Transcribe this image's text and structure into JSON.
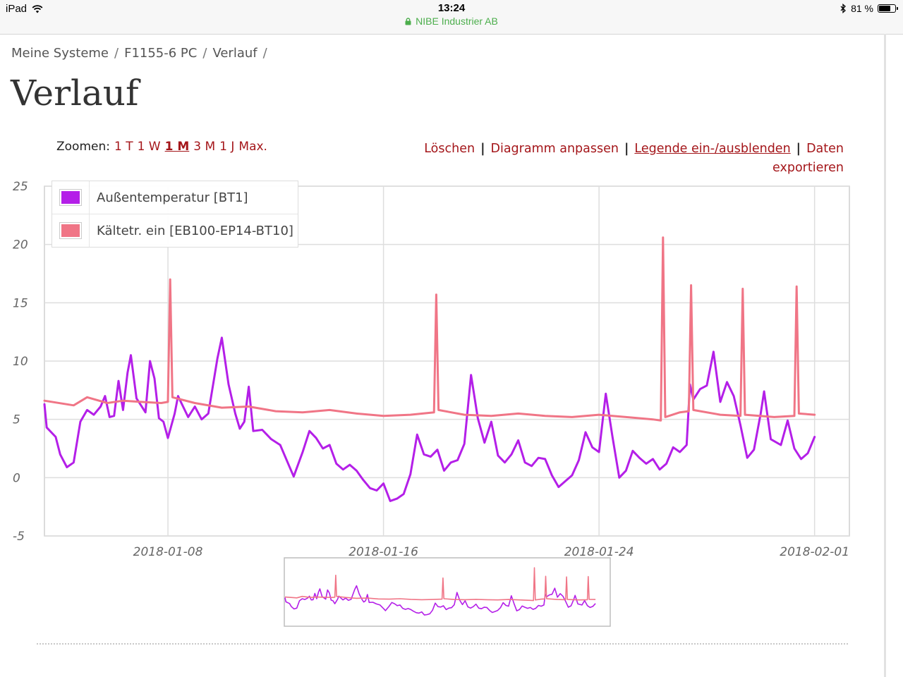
{
  "status_bar": {
    "device": "iPad",
    "time": "13:24",
    "site": "NIBE Industrier AB",
    "battery_text": "81 %",
    "battery_level": 0.81
  },
  "breadcrumb": [
    "Meine Systeme",
    "F1155-6 PC",
    "Verlauf"
  ],
  "breadcrumb_separator": "/",
  "page_title": "Verlauf",
  "zoom": {
    "label": "Zoomen:",
    "options": [
      "1 T",
      "1 W",
      "1 M",
      "3 M",
      "1 J",
      "Max."
    ],
    "active": "1 M"
  },
  "actions": {
    "delete": "Löschen",
    "customize": "Diagramm anpassen",
    "legend_toggle": "Legende ein-/ausblenden",
    "export": "Daten exportieren"
  },
  "colors": {
    "accent": "#a4161a",
    "series_outdoor": "#b41fe8",
    "series_brine": "#f07586"
  },
  "chart_data": {
    "type": "line",
    "title": "",
    "xlabel": "",
    "ylabel": "",
    "ylim": [
      -5,
      25
    ],
    "yticks": [
      -5,
      0,
      5,
      10,
      15,
      20,
      25
    ],
    "xlim": [
      "2018-01-03T10:00",
      "2018-02-02T07:00"
    ],
    "xticks": [
      "2018-01-08",
      "2018-01-16",
      "2018-01-24",
      "2018-02-01"
    ],
    "grid": true,
    "legend_position": "top-left",
    "series": [
      {
        "name": "Außentemperatur [BT1]",
        "color": "#b41fe8",
        "points": [
          [
            "2018-01-03T10:00",
            6.3
          ],
          [
            "2018-01-03T12:00",
            4.3
          ],
          [
            "2018-01-03T20:00",
            3.5
          ],
          [
            "2018-01-04T00:00",
            2.0
          ],
          [
            "2018-01-04T06:00",
            0.9
          ],
          [
            "2018-01-04T12:00",
            1.3
          ],
          [
            "2018-01-04T18:00",
            4.8
          ],
          [
            "2018-01-05T00:00",
            5.8
          ],
          [
            "2018-01-05T06:00",
            5.4
          ],
          [
            "2018-01-05T12:00",
            6.1
          ],
          [
            "2018-01-05T16:00",
            7.0
          ],
          [
            "2018-01-05T20:00",
            5.2
          ],
          [
            "2018-01-06T00:00",
            5.3
          ],
          [
            "2018-01-06T04:00",
            8.3
          ],
          [
            "2018-01-06T08:00",
            5.8
          ],
          [
            "2018-01-06T12:00",
            9.0
          ],
          [
            "2018-01-06T15:00",
            10.5
          ],
          [
            "2018-01-06T20:00",
            6.8
          ],
          [
            "2018-01-07T00:00",
            6.2
          ],
          [
            "2018-01-07T04:00",
            5.6
          ],
          [
            "2018-01-07T08:00",
            10.0
          ],
          [
            "2018-01-07T12:00",
            8.5
          ],
          [
            "2018-01-07T16:00",
            5.1
          ],
          [
            "2018-01-07T20:00",
            4.8
          ],
          [
            "2018-01-08T00:00",
            3.4
          ],
          [
            "2018-01-08T06:00",
            5.5
          ],
          [
            "2018-01-08T09:00",
            7.0
          ],
          [
            "2018-01-08T12:00",
            6.4
          ],
          [
            "2018-01-08T18:00",
            5.2
          ],
          [
            "2018-01-09T00:00",
            6.1
          ],
          [
            "2018-01-09T06:00",
            5.0
          ],
          [
            "2018-01-09T12:00",
            5.5
          ],
          [
            "2018-01-09T20:00",
            10.2
          ],
          [
            "2018-01-10T00:00",
            12.0
          ],
          [
            "2018-01-10T06:00",
            8.0
          ],
          [
            "2018-01-10T12:00",
            5.5
          ],
          [
            "2018-01-10T16:00",
            4.2
          ],
          [
            "2018-01-10T20:00",
            4.8
          ],
          [
            "2018-01-11T00:00",
            7.8
          ],
          [
            "2018-01-11T04:00",
            4.0
          ],
          [
            "2018-01-11T12:00",
            4.1
          ],
          [
            "2018-01-11T20:00",
            3.3
          ],
          [
            "2018-01-12T04:00",
            2.8
          ],
          [
            "2018-01-12T12:00",
            1.0
          ],
          [
            "2018-01-12T16:00",
            0.1
          ],
          [
            "2018-01-13T00:00",
            2.2
          ],
          [
            "2018-01-13T06:00",
            4.0
          ],
          [
            "2018-01-13T12:00",
            3.4
          ],
          [
            "2018-01-13T18:00",
            2.5
          ],
          [
            "2018-01-14T00:00",
            2.8
          ],
          [
            "2018-01-14T06:00",
            1.2
          ],
          [
            "2018-01-14T12:00",
            0.7
          ],
          [
            "2018-01-14T18:00",
            1.1
          ],
          [
            "2018-01-15T00:00",
            0.6
          ],
          [
            "2018-01-15T06:00",
            -0.2
          ],
          [
            "2018-01-15T12:00",
            -0.9
          ],
          [
            "2018-01-15T18:00",
            -1.1
          ],
          [
            "2018-01-16T00:00",
            -0.5
          ],
          [
            "2018-01-16T06:00",
            -2.0
          ],
          [
            "2018-01-16T12:00",
            -1.8
          ],
          [
            "2018-01-16T18:00",
            -1.4
          ],
          [
            "2018-01-17T00:00",
            0.3
          ],
          [
            "2018-01-17T06:00",
            3.7
          ],
          [
            "2018-01-17T12:00",
            2.0
          ],
          [
            "2018-01-17T18:00",
            1.8
          ],
          [
            "2018-01-18T00:00",
            2.4
          ],
          [
            "2018-01-18T06:00",
            0.6
          ],
          [
            "2018-01-18T12:00",
            1.3
          ],
          [
            "2018-01-18T18:00",
            1.5
          ],
          [
            "2018-01-19T00:00",
            2.9
          ],
          [
            "2018-01-19T06:00",
            8.8
          ],
          [
            "2018-01-19T12:00",
            5.1
          ],
          [
            "2018-01-19T18:00",
            3.0
          ],
          [
            "2018-01-20T00:00",
            4.8
          ],
          [
            "2018-01-20T06:00",
            1.9
          ],
          [
            "2018-01-20T12:00",
            1.3
          ],
          [
            "2018-01-20T18:00",
            2.0
          ],
          [
            "2018-01-21T00:00",
            3.2
          ],
          [
            "2018-01-21T06:00",
            1.3
          ],
          [
            "2018-01-21T12:00",
            1.0
          ],
          [
            "2018-01-21T18:00",
            1.7
          ],
          [
            "2018-01-22T00:00",
            1.6
          ],
          [
            "2018-01-22T06:00",
            0.2
          ],
          [
            "2018-01-22T12:00",
            -0.8
          ],
          [
            "2018-01-22T18:00",
            -0.3
          ],
          [
            "2018-01-23T00:00",
            0.2
          ],
          [
            "2018-01-23T06:00",
            1.5
          ],
          [
            "2018-01-23T12:00",
            3.9
          ],
          [
            "2018-01-23T18:00",
            2.6
          ],
          [
            "2018-01-24T00:00",
            2.2
          ],
          [
            "2018-01-24T06:00",
            7.2
          ],
          [
            "2018-01-24T12:00",
            3.5
          ],
          [
            "2018-01-24T18:00",
            0.0
          ],
          [
            "2018-01-25T00:00",
            0.6
          ],
          [
            "2018-01-25T06:00",
            2.3
          ],
          [
            "2018-01-25T12:00",
            1.7
          ],
          [
            "2018-01-25T18:00",
            1.2
          ],
          [
            "2018-01-26T00:00",
            1.6
          ],
          [
            "2018-01-26T06:00",
            0.7
          ],
          [
            "2018-01-26T12:00",
            1.2
          ],
          [
            "2018-01-26T18:00",
            2.6
          ],
          [
            "2018-01-27T00:00",
            2.2
          ],
          [
            "2018-01-27T06:00",
            2.8
          ],
          [
            "2018-01-27T09:00",
            8.0
          ],
          [
            "2018-01-27T12:00",
            6.7
          ],
          [
            "2018-01-27T18:00",
            7.6
          ],
          [
            "2018-01-28T00:00",
            7.9
          ],
          [
            "2018-01-28T06:00",
            10.8
          ],
          [
            "2018-01-28T12:00",
            6.5
          ],
          [
            "2018-01-28T18:00",
            8.2
          ],
          [
            "2018-01-29T00:00",
            7.0
          ],
          [
            "2018-01-29T06:00",
            4.5
          ],
          [
            "2018-01-29T12:00",
            1.7
          ],
          [
            "2018-01-29T18:00",
            2.4
          ],
          [
            "2018-01-30T00:00",
            5.5
          ],
          [
            "2018-01-30T03:00",
            7.4
          ],
          [
            "2018-01-30T09:00",
            3.3
          ],
          [
            "2018-01-30T18:00",
            2.8
          ],
          [
            "2018-01-31T00:00",
            4.9
          ],
          [
            "2018-01-31T06:00",
            2.5
          ],
          [
            "2018-01-31T12:00",
            1.6
          ],
          [
            "2018-01-31T18:00",
            2.1
          ],
          [
            "2018-02-01T00:00",
            3.5
          ]
        ]
      },
      {
        "name": "Kältetr. ein [EB100-EP14-BT10]",
        "color": "#f07586",
        "points": [
          [
            "2018-01-03T10:00",
            6.6
          ],
          [
            "2018-01-04T12:00",
            6.2
          ],
          [
            "2018-01-05T00:00",
            6.9
          ],
          [
            "2018-01-05T18:00",
            6.4
          ],
          [
            "2018-01-06T08:00",
            6.6
          ],
          [
            "2018-01-07T00:00",
            6.5
          ],
          [
            "2018-01-07T18:00",
            6.4
          ],
          [
            "2018-01-08T00:00",
            6.5
          ],
          [
            "2018-01-08T02:00",
            17.0
          ],
          [
            "2018-01-08T04:00",
            6.9
          ],
          [
            "2018-01-09T00:00",
            6.4
          ],
          [
            "2018-01-10T00:00",
            6.0
          ],
          [
            "2018-01-11T00:00",
            6.1
          ],
          [
            "2018-01-12T00:00",
            5.7
          ],
          [
            "2018-01-13T00:00",
            5.6
          ],
          [
            "2018-01-14T00:00",
            5.8
          ],
          [
            "2018-01-15T00:00",
            5.5
          ],
          [
            "2018-01-16T00:00",
            5.3
          ],
          [
            "2018-01-17T00:00",
            5.4
          ],
          [
            "2018-01-17T21:00",
            5.6
          ],
          [
            "2018-01-17T23:00",
            15.7
          ],
          [
            "2018-01-18T01:00",
            5.8
          ],
          [
            "2018-01-19T00:00",
            5.4
          ],
          [
            "2018-01-20T00:00",
            5.3
          ],
          [
            "2018-01-21T00:00",
            5.5
          ],
          [
            "2018-01-22T00:00",
            5.3
          ],
          [
            "2018-01-23T00:00",
            5.2
          ],
          [
            "2018-01-24T00:00",
            5.4
          ],
          [
            "2018-01-25T00:00",
            5.2
          ],
          [
            "2018-01-26T00:00",
            5.0
          ],
          [
            "2018-01-26T07:00",
            4.9
          ],
          [
            "2018-01-26T09:00",
            20.6
          ],
          [
            "2018-01-26T11:00",
            5.2
          ],
          [
            "2018-01-27T00:00",
            5.6
          ],
          [
            "2018-01-27T08:00",
            5.7
          ],
          [
            "2018-01-27T10:00",
            16.5
          ],
          [
            "2018-01-27T12:00",
            5.8
          ],
          [
            "2018-01-28T12:00",
            5.4
          ],
          [
            "2018-01-29T06:00",
            5.3
          ],
          [
            "2018-01-29T08:00",
            16.2
          ],
          [
            "2018-01-29T10:00",
            5.4
          ],
          [
            "2018-01-30T12:00",
            5.2
          ],
          [
            "2018-01-31T06:00",
            5.3
          ],
          [
            "2018-01-31T08:00",
            16.4
          ],
          [
            "2018-01-31T10:00",
            5.5
          ],
          [
            "2018-02-01T00:00",
            5.4
          ]
        ]
      }
    ]
  }
}
